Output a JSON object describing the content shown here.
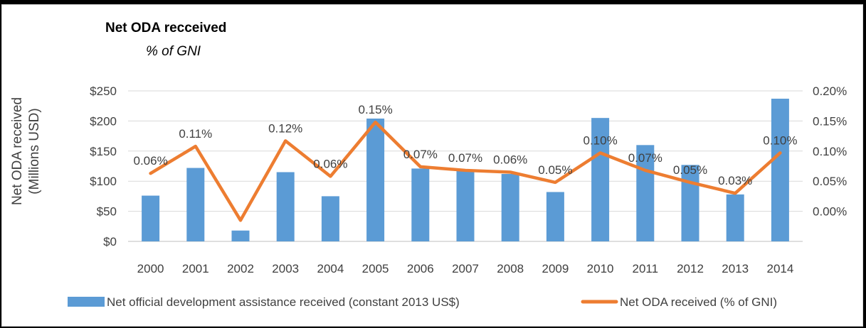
{
  "chart_data": {
    "type": "bar",
    "title": "Net ODA recceived",
    "subtitle": "% of GNI",
    "ylabel_left": [
      "Net ODA received",
      "(Millions USD)"
    ],
    "categories": [
      "2000",
      "2001",
      "2002",
      "2003",
      "2004",
      "2005",
      "2006",
      "2007",
      "2008",
      "2009",
      "2010",
      "2011",
      "2012",
      "2013",
      "2014"
    ],
    "left_axis": {
      "ylim": [
        0,
        250
      ],
      "ticks": [
        0,
        50,
        100,
        150,
        200,
        250
      ],
      "tick_labels": [
        "$0",
        "$50",
        "$100",
        "$150",
        "$200",
        "$250"
      ]
    },
    "right_axis": {
      "ylim": [
        -0.0005,
        0.002
      ],
      "ticks": [
        0,
        0.0005,
        0.001,
        0.0015,
        0.002
      ],
      "tick_labels": [
        "0.00%",
        "0.05%",
        "0.10%",
        "0.15%",
        "0.20%"
      ]
    },
    "series": [
      {
        "name": "Net official development assistance received (constant 2013 US$)",
        "type": "bar",
        "axis": "left",
        "color": "#5b9bd5",
        "values": [
          76,
          122,
          18,
          115,
          75,
          204,
          121,
          117,
          112,
          82,
          205,
          160,
          127,
          78,
          237
        ]
      },
      {
        "name": "Net ODA received (% of GNI)",
        "type": "line",
        "axis": "right",
        "color": "#ed7d31",
        "values": [
          0.00063,
          0.00108,
          -0.00015,
          0.00117,
          0.00058,
          0.00148,
          0.00074,
          0.00068,
          0.00065,
          0.00048,
          0.00097,
          0.00068,
          0.00048,
          0.0003,
          0.00097
        ],
        "data_labels": [
          "0.06%",
          "0.11%",
          "0.12%",
          "0.06%",
          "0.15%",
          "0.07%",
          "0.07%",
          "0.06%",
          "0.05%",
          "0.10%",
          "0.07%",
          "0.05%",
          "0.03%",
          "0.10%"
        ],
        "data_label_index": [
          0,
          1,
          3,
          4,
          5,
          6,
          7,
          8,
          9,
          10,
          11,
          12,
          13,
          14
        ]
      }
    ],
    "gridlines": true,
    "legend_position": "bottom"
  }
}
